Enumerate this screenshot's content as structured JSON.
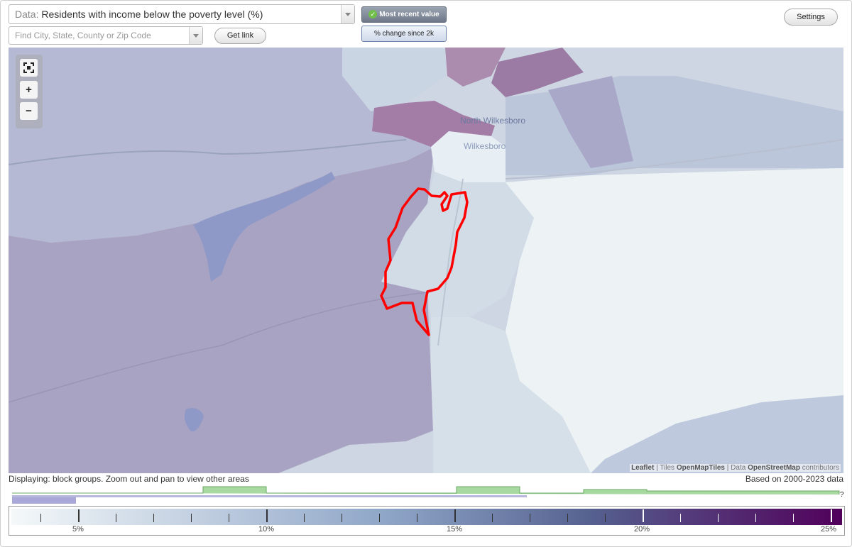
{
  "data_select": {
    "label": "Data:",
    "value": "Residents with income below the poverty level (%)"
  },
  "search": {
    "placeholder": "Find City, State, County or Zip Code"
  },
  "get_link_label": "Get link",
  "mode_buttons": {
    "most_recent": "Most recent value",
    "percent_change": "% change since 2k"
  },
  "settings_label": "Settings",
  "map": {
    "place_labels": [
      "North Wilkesboro",
      "Wilkesboro"
    ],
    "attribution": {
      "leaflet": "Leaflet",
      "tiles_prefix": "Tiles",
      "tiles": "OpenMapTiles",
      "data_prefix": "Data",
      "data": "OpenStreetMap",
      "suffix": "contributors"
    },
    "zoom_controls": {
      "zoom_in": "+",
      "zoom_out": "−"
    }
  },
  "footer": {
    "displaying": "Displaying: block groups. Zoom out and pan to view other areas",
    "based_on": "Based on 2000-2023 data"
  },
  "legend": {
    "tick_labels": [
      "5%",
      "10%",
      "15%",
      "20%",
      "25%"
    ],
    "unknown_mark": "?",
    "colors": {
      "low": "#f4f8f9",
      "mid": "#8fa6c8",
      "high": "#51005a"
    }
  }
}
